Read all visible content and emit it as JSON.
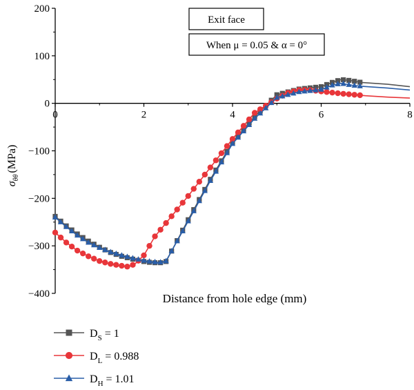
{
  "chart_data": {
    "type": "line",
    "xlabel": "Distance from hole edge (mm)",
    "ylabel": "σθθ (MPa)",
    "ylabel_symbol": "σ",
    "ylabel_subscript": "θθ",
    "ylabel_unit": "(MPa)",
    "xlim": [
      0,
      8
    ],
    "ylim": [
      -400,
      200
    ],
    "x_ticks": [
      "0",
      "2",
      "4",
      "6",
      "8"
    ],
    "y_ticks": [
      "200",
      "100",
      "0",
      "−100",
      "−200",
      "−300",
      "−400"
    ],
    "grid": false,
    "legend_position": "below",
    "annotations": [
      "Exit face",
      "When μ = 0.05 & α = 0°"
    ],
    "series": [
      {
        "name": "DS = 1",
        "legend_main": "D",
        "legend_sub": "S",
        "legend_value": " = 1",
        "color": "#555555",
        "marker": "square",
        "x": [
          0,
          0.25,
          0.5,
          0.75,
          1.0,
          1.25,
          1.5,
          1.75,
          2.0,
          2.15,
          2.35,
          2.5,
          3.0,
          3.5,
          4.0,
          4.5,
          5.0,
          5.5,
          6.0,
          6.25,
          6.45,
          6.65,
          6.9,
          7.5,
          8.0
        ],
        "y": [
          -238,
          -258,
          -275,
          -290,
          -303,
          -314,
          -322,
          -328,
          -333,
          -335,
          -336,
          -333,
          -245,
          -160,
          -82,
          -28,
          18,
          30,
          35,
          44,
          50,
          48,
          44,
          40,
          35
        ],
        "marker_x_end": 6.9
      },
      {
        "name": "DL = 0.988",
        "legend_main": "D",
        "legend_sub": "L",
        "legend_value": " = 0.988",
        "color": "#e8363a",
        "marker": "circle",
        "x": [
          0,
          0.25,
          0.5,
          0.75,
          1.0,
          1.25,
          1.5,
          1.65,
          1.8,
          2.0,
          2.25,
          2.5,
          3.0,
          3.5,
          4.0,
          4.5,
          5.0,
          5.25,
          5.5,
          5.75,
          6.0,
          6.5,
          7.0,
          7.5,
          8.0
        ],
        "y": [
          -272,
          -293,
          -310,
          -322,
          -332,
          -338,
          -342,
          -344,
          -338,
          -320,
          -280,
          -252,
          -195,
          -135,
          -75,
          -20,
          10,
          22,
          28,
          28,
          25,
          20,
          16,
          13,
          11
        ],
        "marker_x_end": 6.95
      },
      {
        "name": "DH = 1.01",
        "legend_main": "D",
        "legend_sub": "H",
        "legend_value": " = 1.01",
        "color": "#2a5ea8",
        "marker": "triangle",
        "x": [
          0,
          0.25,
          0.5,
          0.75,
          1.0,
          1.25,
          1.5,
          1.75,
          2.0,
          2.15,
          2.35,
          2.5,
          3.0,
          3.5,
          4.0,
          4.5,
          5.0,
          5.5,
          6.0,
          6.25,
          6.45,
          6.7,
          6.9,
          7.5,
          8.0
        ],
        "y": [
          -240,
          -260,
          -278,
          -293,
          -304,
          -313,
          -320,
          -326,
          -331,
          -333,
          -335,
          -332,
          -248,
          -163,
          -85,
          -32,
          12,
          24,
          29,
          38,
          42,
          38,
          36,
          32,
          28
        ],
        "marker_x_end": 6.9
      }
    ]
  }
}
